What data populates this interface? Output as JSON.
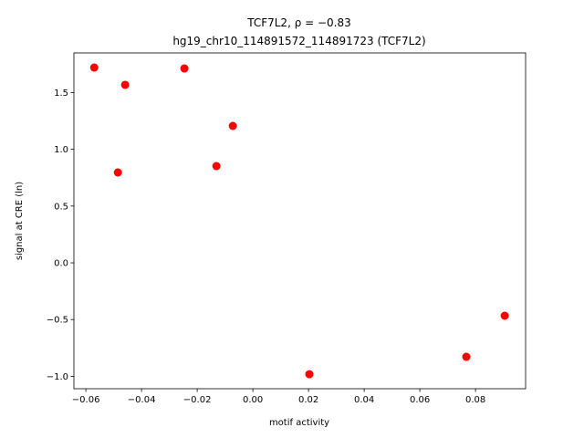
{
  "chart_data": {
    "type": "scatter",
    "title": "TCF7L2, ρ = −0.83",
    "subtitle": "hg19_chr10_114891572_114891723 (TCF7L2)",
    "x_label": "motif activity",
    "y_label": "signal at CRE (ln)",
    "color": "#ff0000",
    "x": [
      -0.057,
      -0.0459,
      -0.0246,
      -0.0072,
      -0.0131,
      -0.0485,
      0.0203,
      0.0767,
      0.0905
    ],
    "values": [
      1.72,
      1.568,
      1.712,
      1.206,
      0.852,
      0.796,
      -0.981,
      -0.828,
      -0.466
    ],
    "xlim": [
      -0.0643,
      0.098
    ],
    "ylim": [
      -1.109,
      1.849
    ],
    "xticks": [
      {
        "value": -0.06,
        "label": "−0.06"
      },
      {
        "value": -0.04,
        "label": "−0.04"
      },
      {
        "value": -0.02,
        "label": "−0.02"
      },
      {
        "value": 0,
        "label": "0.00"
      },
      {
        "value": 0.02,
        "label": "0.02"
      },
      {
        "value": 0.04,
        "label": "0.04"
      },
      {
        "value": 0.06,
        "label": "0.06"
      },
      {
        "value": 0.08,
        "label": "0.08"
      }
    ],
    "yticks": [
      {
        "value": -1,
        "label": "−1.0"
      },
      {
        "value": -0.5,
        "label": "−0.5"
      },
      {
        "value": 0,
        "label": "0.0"
      },
      {
        "value": 0.5,
        "label": "0.5"
      },
      {
        "value": 1,
        "label": "1.0"
      },
      {
        "value": 1.5,
        "label": "1.5"
      }
    ]
  }
}
